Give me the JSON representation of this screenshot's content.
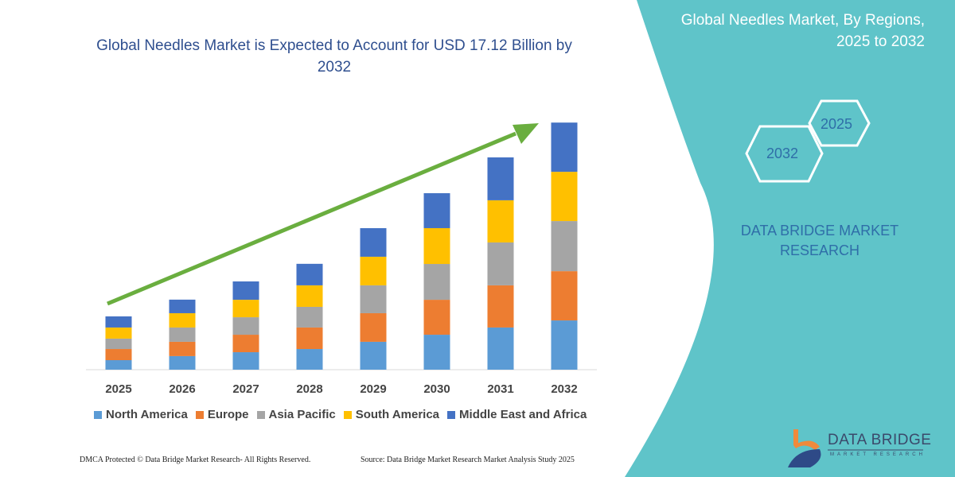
{
  "header": {
    "title": "Global Needles Market is Expected to Account for USD 17.12 Billion by 2032",
    "side_title_line1": "Global Needles Market, By Regions,",
    "side_title_line2": "2025 to 2032"
  },
  "hexagons": {
    "front": "2032",
    "back": "2025"
  },
  "brand": {
    "line1": "DATA BRIDGE MARKET",
    "line2": "RESEARCH"
  },
  "logo": {
    "name": "DATA BRIDGE",
    "tagline": "MARKET RESEARCH"
  },
  "footer": {
    "copyright": "DMCA Protected © Data Bridge Market Research-  All Rights Reserved.",
    "source": "Source: Data Bridge Market Research  Market Analysis Study 2025"
  },
  "colors": {
    "panel": "#5fc4c9",
    "trend_arrow": "#6aae3f",
    "title": "#2f4f8f"
  },
  "chart_data": {
    "type": "bar",
    "stacked": true,
    "title": "Global Needles Market is Expected to Account for USD 17.12 Billion by 2032",
    "xlabel": "",
    "ylabel": "",
    "grid": false,
    "legend": "bottom",
    "trend_arrow": true,
    "categories": [
      "2025",
      "2026",
      "2027",
      "2028",
      "2029",
      "2030",
      "2031",
      "2032"
    ],
    "series": [
      {
        "name": "North America",
        "color": "#5b9bd5",
        "values": [
          0.66,
          0.94,
          1.21,
          1.43,
          1.93,
          2.42,
          2.92,
          3.41
        ]
      },
      {
        "name": "Europe",
        "color": "#ed7d31",
        "values": [
          0.77,
          0.99,
          1.21,
          1.49,
          1.98,
          2.42,
          2.92,
          3.41
        ]
      },
      {
        "name": "Asia Pacific",
        "color": "#a5a5a5",
        "values": [
          0.72,
          0.99,
          1.21,
          1.43,
          1.93,
          2.48,
          2.97,
          3.47
        ]
      },
      {
        "name": "South America",
        "color": "#ffc000",
        "values": [
          0.77,
          0.99,
          1.21,
          1.49,
          1.98,
          2.48,
          2.92,
          3.41
        ]
      },
      {
        "name": "Middle East and Africa",
        "color": "#4472c4",
        "values": [
          0.77,
          0.94,
          1.27,
          1.49,
          1.98,
          2.42,
          2.97,
          3.41
        ]
      }
    ]
  }
}
